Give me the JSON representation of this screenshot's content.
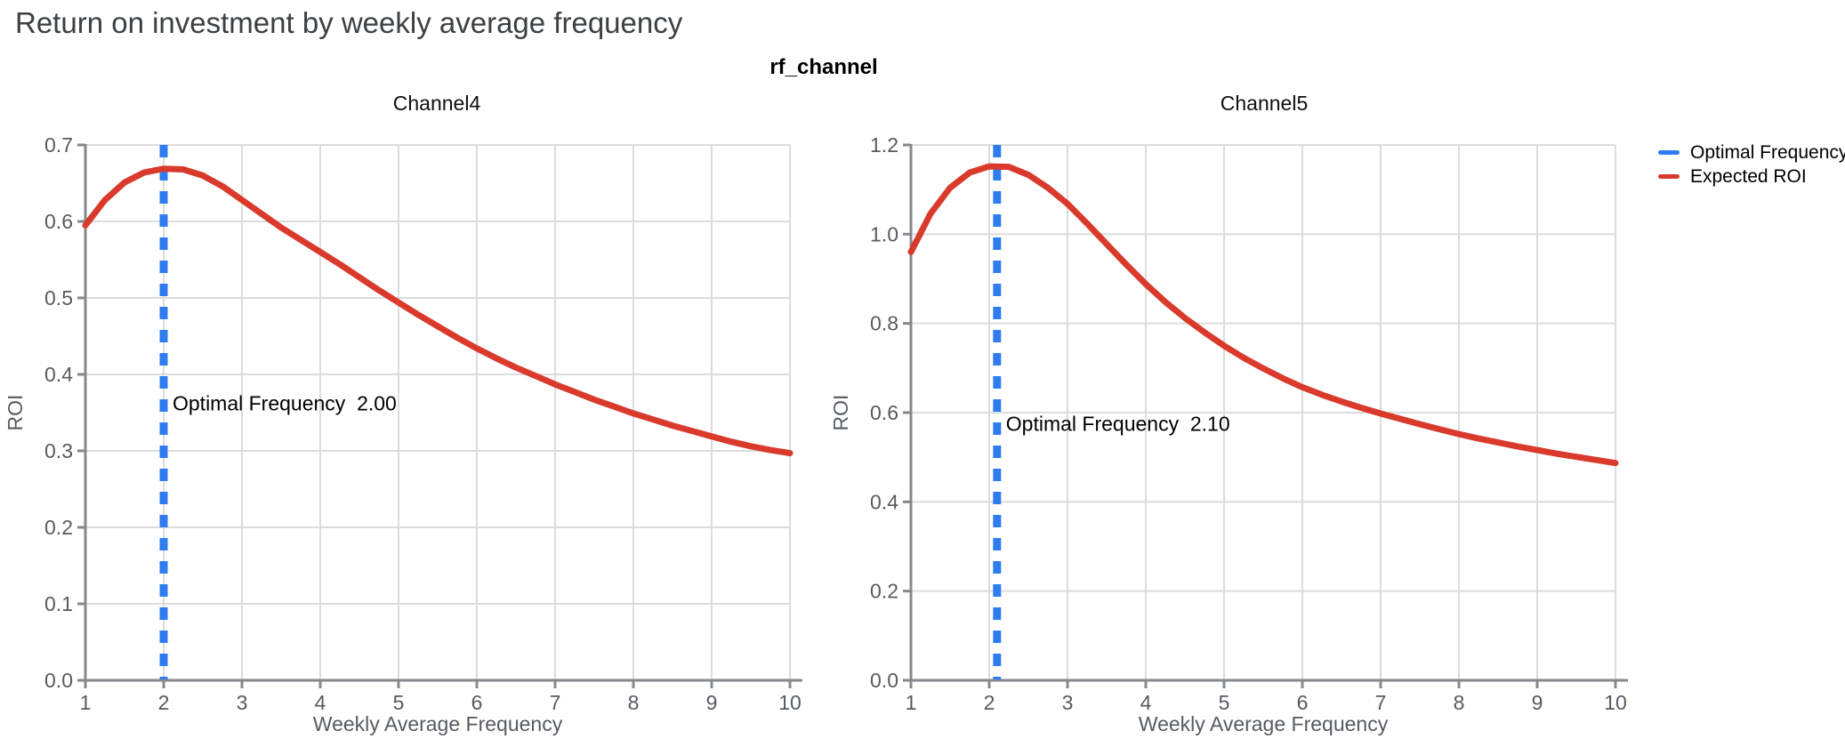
{
  "header": {
    "title": "Return on investment by weekly average frequency",
    "facet_title": "rf_channel"
  },
  "legend": {
    "position": "top-right",
    "items": [
      {
        "label": "Optimal Frequency",
        "color": "#2E7CF0"
      },
      {
        "label": "Expected ROI",
        "color": "#D93A2B"
      }
    ]
  },
  "style": {
    "background": "#FFFFFF",
    "title_color": "#3C4043",
    "grid_color": "#DCDCDC",
    "axis_color": "#85898D",
    "tick_label_color": "#565B61",
    "annotation_color": "#000000",
    "grid": true
  },
  "chart_data": [
    {
      "type": "line",
      "title": "Channel4",
      "xlabel": "Weekly Average Frequency",
      "ylabel": "ROI",
      "xlim": [
        1,
        10
      ],
      "ylim": [
        0,
        0.7
      ],
      "x_ticks": [
        "1",
        "2",
        "3",
        "4",
        "5",
        "6",
        "7",
        "8",
        "9",
        "10"
      ],
      "y_ticks": [
        "0.0",
        "0.1",
        "0.2",
        "0.3",
        "0.4",
        "0.5",
        "0.6",
        "0.7"
      ],
      "optimal_frequency": {
        "x": 2.0,
        "color": "#2E7CF0",
        "annotation": "Optimal Frequency  2.00",
        "annotation_y": 0.362
      },
      "series": [
        {
          "name": "Expected ROI",
          "color": "#D93A2B",
          "x": [
            1,
            1.25,
            1.5,
            1.75,
            2,
            2.25,
            2.5,
            2.75,
            3,
            3.25,
            3.5,
            3.75,
            4,
            4.25,
            4.5,
            4.75,
            5,
            5.25,
            5.5,
            5.75,
            6,
            6.25,
            6.5,
            6.75,
            7,
            7.25,
            7.5,
            7.75,
            8,
            8.25,
            8.5,
            8.75,
            9,
            9.25,
            9.5,
            9.75,
            10
          ],
          "y": [
            0.595,
            0.628,
            0.651,
            0.664,
            0.669,
            0.668,
            0.66,
            0.646,
            0.628,
            0.61,
            0.592,
            0.576,
            0.56,
            0.544,
            0.527,
            0.51,
            0.494,
            0.478,
            0.463,
            0.448,
            0.434,
            0.421,
            0.409,
            0.398,
            0.387,
            0.377,
            0.367,
            0.358,
            0.349,
            0.341,
            0.333,
            0.326,
            0.319,
            0.312,
            0.306,
            0.301,
            0.297
          ]
        }
      ]
    },
    {
      "type": "line",
      "title": "Channel5",
      "xlabel": "Weekly Average Frequency",
      "ylabel": "ROI",
      "xlim": [
        1,
        10
      ],
      "ylim": [
        0,
        1.2
      ],
      "x_ticks": [
        "1",
        "2",
        "3",
        "4",
        "5",
        "6",
        "7",
        "8",
        "9",
        "10"
      ],
      "y_ticks": [
        "0.0",
        "0.2",
        "0.4",
        "0.6",
        "0.8",
        "1.0",
        "1.2"
      ],
      "optimal_frequency": {
        "x": 2.1,
        "color": "#2E7CF0",
        "annotation": "Optimal Frequency  2.10",
        "annotation_y": 0.575
      },
      "series": [
        {
          "name": "Expected ROI",
          "color": "#D93A2B",
          "x": [
            1,
            1.25,
            1.5,
            1.75,
            2,
            2.25,
            2.5,
            2.75,
            3,
            3.25,
            3.5,
            3.75,
            4,
            4.25,
            4.5,
            4.75,
            5,
            5.25,
            5.5,
            5.75,
            6,
            6.25,
            6.5,
            6.75,
            7,
            7.25,
            7.5,
            7.75,
            8,
            8.25,
            8.5,
            8.75,
            9,
            9.25,
            9.5,
            9.75,
            10
          ],
          "y": [
            0.96,
            1.046,
            1.104,
            1.138,
            1.152,
            1.151,
            1.133,
            1.104,
            1.068,
            1.024,
            0.978,
            0.932,
            0.888,
            0.848,
            0.812,
            0.78,
            0.75,
            0.723,
            0.699,
            0.677,
            0.657,
            0.64,
            0.625,
            0.611,
            0.598,
            0.586,
            0.574,
            0.563,
            0.552,
            0.542,
            0.533,
            0.524,
            0.516,
            0.508,
            0.501,
            0.494,
            0.487
          ]
        }
      ]
    }
  ]
}
